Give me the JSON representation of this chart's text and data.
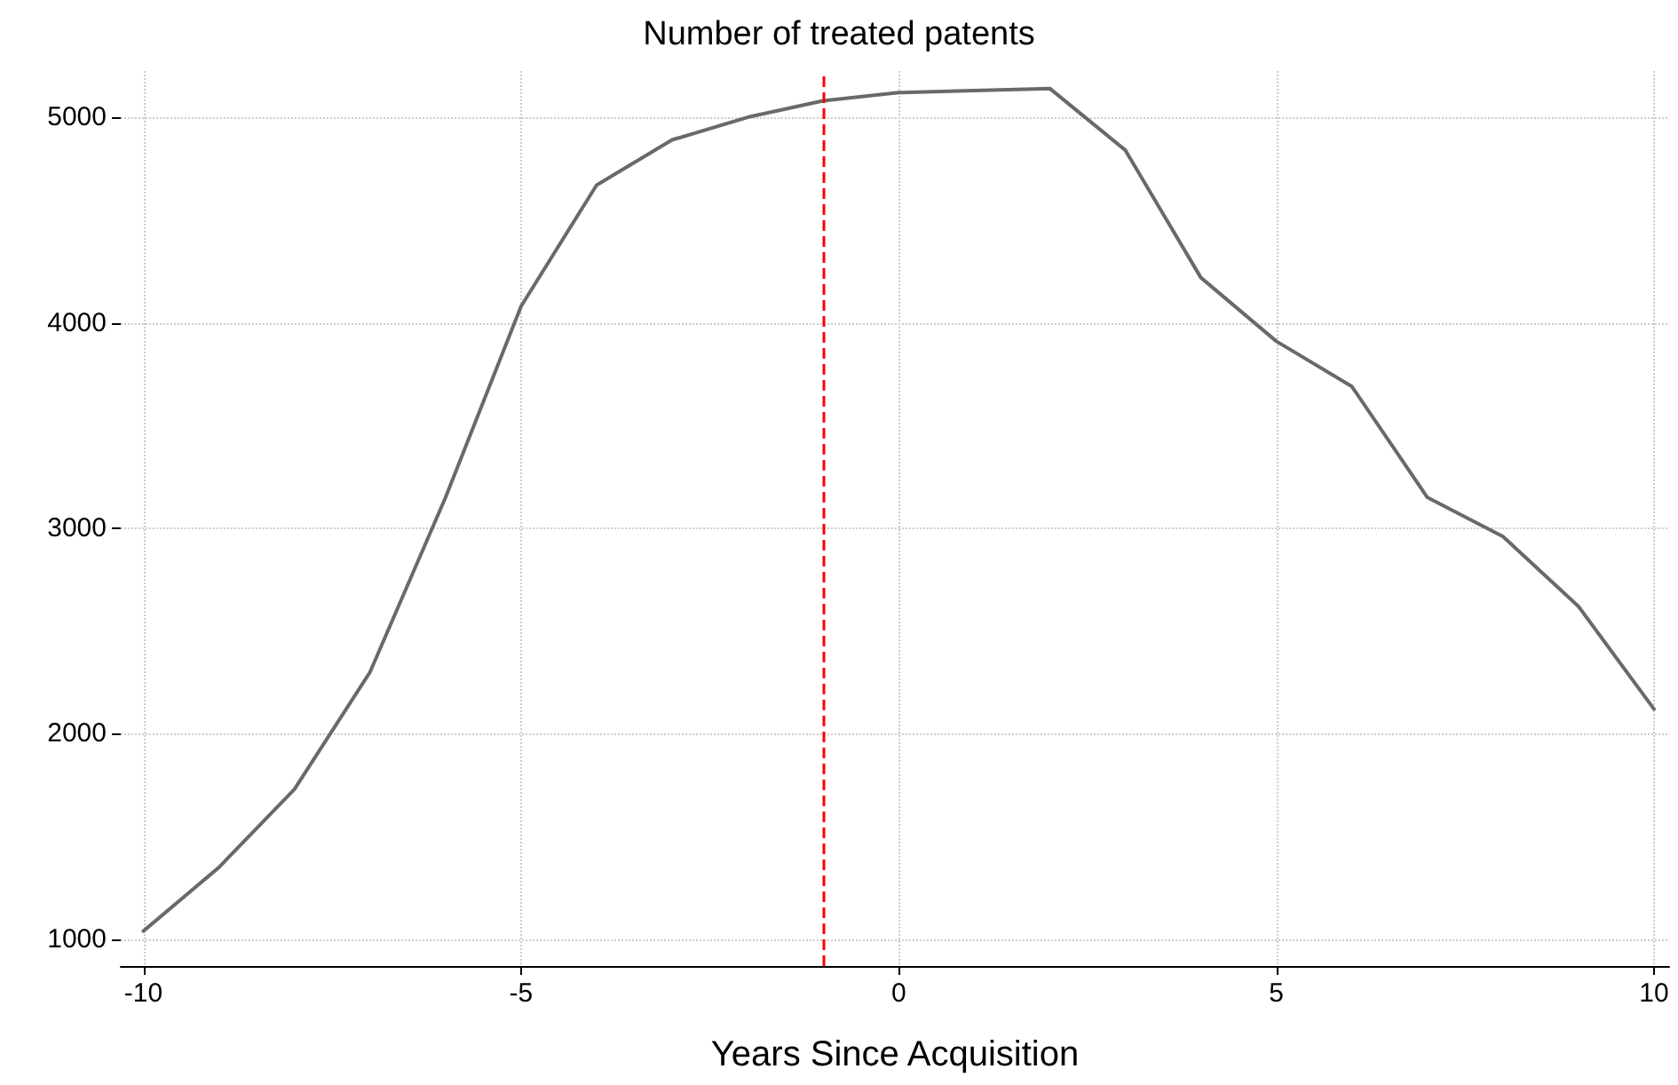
{
  "chart_data": {
    "type": "line",
    "title": "Number of treated patents",
    "xlabel": "Years Since Acquisition",
    "x": [
      -10,
      -9,
      -8,
      -7,
      -6,
      -5,
      -4,
      -3,
      -2,
      -1,
      0,
      1,
      2,
      3,
      4,
      5,
      6,
      7,
      8,
      9,
      10
    ],
    "series": [
      {
        "color": "#696969",
        "values": [
          1040,
          1350,
          1730,
          2300,
          3150,
          4080,
          4670,
          4890,
          5000,
          5080,
          5120,
          5130,
          5140,
          4840,
          4220,
          3910,
          3690,
          3150,
          2960,
          2620,
          2120
        ]
      }
    ],
    "xlim": [
      -10.3,
      10.2
    ],
    "xticks": [
      -10,
      -5,
      0,
      5,
      10
    ],
    "ylim": [
      870,
      5225
    ],
    "yticks": [
      1000,
      2000,
      3000,
      4000,
      5000
    ],
    "ref_lines": [
      {
        "axis": "x",
        "value": -1,
        "color": "#ff0000",
        "line_style": "dashed"
      }
    ],
    "grid": true,
    "line_style": "solid",
    "marker": "none"
  }
}
